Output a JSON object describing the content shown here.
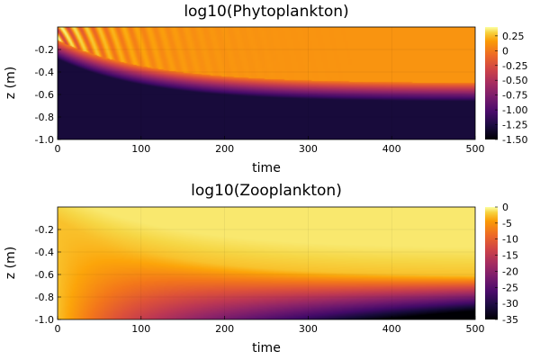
{
  "chart_data": [
    {
      "type": "heatmap",
      "title": "log10(Phytoplankton)",
      "xlabel": "time",
      "ylabel": "z (m)",
      "xlim": [
        0,
        500
      ],
      "ylim": [
        -1.0,
        0
      ],
      "xticks": [
        "0",
        "100",
        "200",
        "300",
        "400",
        "500"
      ],
      "yticks": [
        "-0.2",
        "-0.4",
        "-0.6",
        "-0.8",
        "-1.0"
      ],
      "colormap": "inferno",
      "clim": [
        -1.5,
        0.4
      ],
      "colorbar_ticks": [
        "0.25",
        "0",
        "-0.25",
        "-0.50",
        "-0.75",
        "-1.00",
        "-1.25",
        "-1.50"
      ],
      "grid": true
    },
    {
      "type": "heatmap",
      "title": "log10(Zooplankton)",
      "xlabel": "time",
      "ylabel": "z (m)",
      "xlim": [
        0,
        500
      ],
      "ylim": [
        -1.0,
        0
      ],
      "xticks": [
        "0",
        "100",
        "200",
        "300",
        "400",
        "500"
      ],
      "yticks": [
        "-0.2",
        "-0.4",
        "-0.6",
        "-0.8",
        "-1.0"
      ],
      "colormap": "inferno",
      "clim": [
        -35,
        0
      ],
      "colorbar_ticks": [
        "0",
        "-5",
        "-10",
        "-15",
        "-20",
        "-25",
        "-30",
        "-35"
      ],
      "grid": true
    }
  ]
}
